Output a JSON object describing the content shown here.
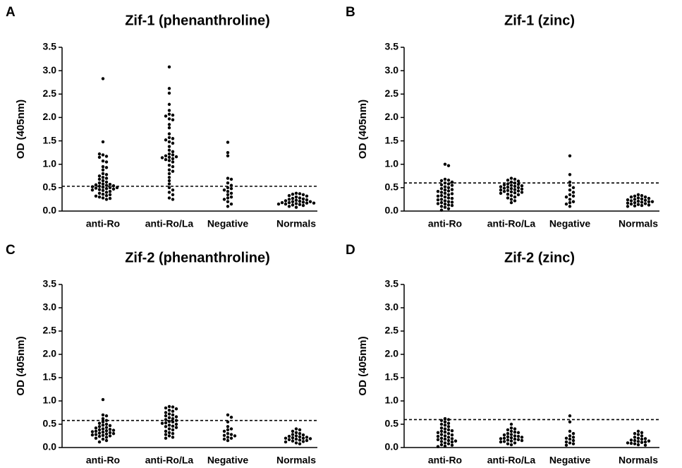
{
  "chart_data": [
    {
      "type": "dotplot",
      "panel": "A",
      "title": "Zif-1 (phenanthroline)",
      "y_label": "OD (405nm)",
      "color": "#000000",
      "categories": [
        "anti-Ro",
        "anti-Ro/La",
        "Negative",
        "Normals"
      ],
      "values": [
        [
          2.83,
          1.48,
          1.2,
          1.17,
          1.22,
          1.15,
          1.07,
          1.05,
          0.95,
          0.93,
          0.88,
          0.8,
          0.78,
          0.75,
          0.72,
          0.7,
          0.68,
          0.65,
          0.62,
          0.6,
          0.58,
          0.57,
          0.56,
          0.55,
          0.54,
          0.53,
          0.52,
          0.51,
          0.5,
          0.5,
          0.49,
          0.48,
          0.47,
          0.46,
          0.45,
          0.44,
          0.42,
          0.4,
          0.38,
          0.36,
          0.35,
          0.33,
          0.32,
          0.3,
          0.28,
          0.27,
          0.25
        ],
        [
          3.08,
          2.62,
          2.52,
          2.28,
          2.15,
          2.07,
          2.05,
          2.03,
          1.97,
          1.95,
          1.85,
          1.78,
          1.65,
          1.57,
          1.55,
          1.52,
          1.48,
          1.45,
          1.38,
          1.3,
          1.27,
          1.22,
          1.2,
          1.18,
          1.16,
          1.15,
          1.14,
          1.12,
          1.1,
          1.08,
          1.05,
          0.98,
          0.95,
          0.88,
          0.85,
          0.8,
          0.72,
          0.65,
          0.58,
          0.5,
          0.45,
          0.4,
          0.35,
          0.28,
          0.25
        ],
        [
          1.47,
          1.25,
          1.18,
          0.7,
          0.68,
          0.6,
          0.55,
          0.5,
          0.48,
          0.45,
          0.42,
          0.38,
          0.35,
          0.3,
          0.28,
          0.25,
          0.2,
          0.15,
          0.1
        ],
        [
          0.38,
          0.37,
          0.36,
          0.35,
          0.33,
          0.32,
          0.3,
          0.28,
          0.27,
          0.26,
          0.25,
          0.24,
          0.23,
          0.22,
          0.21,
          0.2,
          0.2,
          0.19,
          0.18,
          0.18,
          0.17,
          0.17,
          0.16,
          0.15,
          0.15,
          0.14,
          0.13,
          0.12,
          0.1,
          0.08
        ]
      ],
      "cutoff": 0.53,
      "ylim": [
        0,
        3.5
      ],
      "yticks": [
        {
          "value": 0,
          "label": "0.0"
        },
        0.5,
        {
          "value": 1,
          "label": "1.0"
        },
        1.5,
        {
          "value": 2,
          "label": "2.0"
        },
        2.5,
        {
          "value": 3,
          "label": "3.0"
        },
        3.5
      ]
    },
    {
      "type": "dotplot",
      "panel": "B",
      "title": "Zif-1 (zinc)",
      "y_label": "OD (405nm)",
      "color": "#000000",
      "categories": [
        "anti-Ro",
        "anti-Ro/La",
        "Negative",
        "Normals"
      ],
      "values": [
        [
          1.0,
          0.97,
          0.68,
          0.66,
          0.65,
          0.62,
          0.6,
          0.58,
          0.56,
          0.55,
          0.52,
          0.5,
          0.48,
          0.46,
          0.45,
          0.43,
          0.42,
          0.4,
          0.38,
          0.37,
          0.35,
          0.33,
          0.32,
          0.3,
          0.28,
          0.27,
          0.25,
          0.24,
          0.22,
          0.2,
          0.19,
          0.18,
          0.16,
          0.15,
          0.13,
          0.12,
          0.1,
          0.08,
          0.05,
          0.02
        ],
        [
          0.7,
          0.68,
          0.66,
          0.64,
          0.62,
          0.6,
          0.58,
          0.57,
          0.56,
          0.55,
          0.54,
          0.53,
          0.52,
          0.51,
          0.5,
          0.49,
          0.48,
          0.47,
          0.46,
          0.45,
          0.44,
          0.43,
          0.42,
          0.41,
          0.4,
          0.39,
          0.38,
          0.36,
          0.35,
          0.33,
          0.3,
          0.28,
          0.25,
          0.22,
          0.18
        ],
        [
          1.18,
          0.78,
          0.62,
          0.55,
          0.5,
          0.45,
          0.4,
          0.35,
          0.32,
          0.3,
          0.25,
          0.2,
          0.18,
          0.15,
          0.1
        ],
        [
          0.35,
          0.33,
          0.32,
          0.3,
          0.3,
          0.28,
          0.27,
          0.26,
          0.25,
          0.24,
          0.23,
          0.22,
          0.21,
          0.2,
          0.2,
          0.19,
          0.18,
          0.17,
          0.16,
          0.15,
          0.14,
          0.13,
          0.12,
          0.11,
          0.1
        ]
      ],
      "cutoff": 0.6,
      "ylim": [
        0,
        3.5
      ],
      "yticks": [
        {
          "value": 0,
          "label": "0.0"
        },
        0.5,
        {
          "value": 1,
          "label": "1.0"
        },
        1.5,
        {
          "value": 2,
          "label": "2.0"
        },
        2.5,
        {
          "value": 3,
          "label": "3.0"
        },
        3.5
      ]
    },
    {
      "type": "dotplot",
      "panel": "C",
      "title": "Zif-2 (phenanthroline)",
      "y_label": "OD (405nm)",
      "color": "#000000",
      "categories": [
        "anti-Ro",
        "anti-Ro/La",
        "Negative",
        "Normals"
      ],
      "values": [
        [
          1.03,
          0.7,
          0.68,
          0.62,
          0.58,
          0.55,
          0.52,
          0.5,
          0.48,
          0.47,
          0.45,
          0.43,
          0.42,
          0.4,
          0.39,
          0.38,
          0.37,
          0.36,
          0.35,
          0.34,
          0.33,
          0.32,
          0.31,
          0.3,
          0.29,
          0.28,
          0.27,
          0.26,
          0.25,
          0.24,
          0.22,
          0.2,
          0.18,
          0.15,
          0.12
        ],
        [
          0.88,
          0.87,
          0.85,
          0.83,
          0.8,
          0.78,
          0.75,
          0.72,
          0.7,
          0.68,
          0.66,
          0.64,
          0.62,
          0.6,
          0.58,
          0.56,
          0.55,
          0.53,
          0.52,
          0.5,
          0.48,
          0.46,
          0.45,
          0.43,
          0.4,
          0.38,
          0.35,
          0.32,
          0.3,
          0.28,
          0.25,
          0.22,
          0.2
        ],
        [
          0.7,
          0.65,
          0.55,
          0.45,
          0.4,
          0.38,
          0.35,
          0.3,
          0.28,
          0.26,
          0.25,
          0.22,
          0.2,
          0.18,
          0.15
        ],
        [
          0.4,
          0.38,
          0.35,
          0.32,
          0.3,
          0.28,
          0.27,
          0.25,
          0.24,
          0.23,
          0.22,
          0.21,
          0.2,
          0.2,
          0.19,
          0.18,
          0.17,
          0.16,
          0.15,
          0.14,
          0.13,
          0.12,
          0.1,
          0.08
        ]
      ],
      "cutoff": 0.58,
      "ylim": [
        0,
        3.5
      ],
      "yticks": [
        {
          "value": 0,
          "label": "0.0"
        },
        0.5,
        {
          "value": 1,
          "label": "1.0"
        },
        1.5,
        {
          "value": 2,
          "label": "2.0"
        },
        2.5,
        {
          "value": 3,
          "label": "3.0"
        },
        3.5
      ]
    },
    {
      "type": "dotplot",
      "panel": "D",
      "title": "Zif-2 (zinc)",
      "y_label": "OD (405nm)",
      "color": "#000000",
      "categories": [
        "anti-Ro",
        "anti-Ro/La",
        "Negative",
        "Normals"
      ],
      "values": [
        [
          0.62,
          0.6,
          0.58,
          0.55,
          0.52,
          0.5,
          0.48,
          0.45,
          0.42,
          0.4,
          0.38,
          0.36,
          0.35,
          0.33,
          0.32,
          0.3,
          0.28,
          0.27,
          0.25,
          0.24,
          0.22,
          0.2,
          0.19,
          0.18,
          0.17,
          0.15,
          0.14,
          0.13,
          0.12,
          0.1,
          0.08,
          0.06,
          0.05,
          0.03,
          0.02
        ],
        [
          0.5,
          0.42,
          0.4,
          0.38,
          0.35,
          0.33,
          0.32,
          0.3,
          0.28,
          0.27,
          0.25,
          0.24,
          0.23,
          0.22,
          0.21,
          0.2,
          0.19,
          0.18,
          0.17,
          0.16,
          0.15,
          0.14,
          0.13,
          0.12,
          0.1,
          0.08,
          0.06
        ],
        [
          0.68,
          0.55,
          0.35,
          0.3,
          0.25,
          0.22,
          0.2,
          0.18,
          0.15,
          0.12,
          0.1,
          0.08,
          0.05
        ],
        [
          0.35,
          0.32,
          0.3,
          0.28,
          0.25,
          0.22,
          0.2,
          0.19,
          0.18,
          0.16,
          0.15,
          0.14,
          0.13,
          0.12,
          0.11,
          0.1,
          0.09,
          0.08,
          0.06,
          0.05
        ]
      ],
      "cutoff": 0.6,
      "ylim": [
        0,
        3.5
      ],
      "yticks": [
        {
          "value": 0,
          "label": "0.0"
        },
        0.5,
        {
          "value": 1,
          "label": "1.0"
        },
        1.5,
        {
          "value": 2,
          "label": "2.0"
        },
        2.5,
        {
          "value": 3,
          "label": "3.0"
        },
        3.5
      ]
    }
  ]
}
